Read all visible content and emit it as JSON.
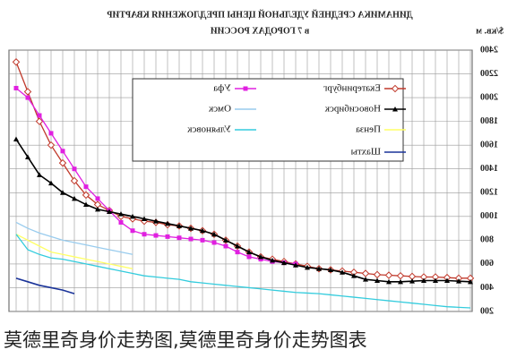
{
  "chart_data": {
    "type": "line",
    "title": "ДИНАМИКА СРЕДНЕЙ УДЕЛЬНОЙ ЦЕНЫ ПРЕДЛОЖЕНИЯ КВАРТИР",
    "subtitle": "в 7 ГОРОДАХ РОССИИ",
    "y_label": "$/кв. м",
    "categories": [
      null,
      null,
      null,
      null,
      null,
      null,
      null,
      null,
      null,
      null,
      null,
      null,
      null,
      null,
      null,
      null,
      null,
      null,
      null,
      null,
      null,
      null,
      null,
      null,
      null,
      null,
      null,
      null,
      null,
      null,
      null,
      null,
      null,
      null,
      null,
      null,
      null,
      null,
      null,
      null
    ],
    "ylim": [
      200,
      2400
    ],
    "yticks": [
      200,
      400,
      600,
      800,
      1000,
      1200,
      1400,
      1600,
      1800,
      2000,
      2200,
      2400
    ],
    "grid": true,
    "series": [
      {
        "name": "Екатеринбург",
        "color": "#c0392b",
        "values": [
          2300,
          2050,
          1800,
          1600,
          1450,
          1300,
          1180,
          1100,
          1050,
          1000,
          980,
          960,
          950,
          930,
          920,
          900,
          880,
          850,
          800,
          750,
          700,
          660,
          640,
          620,
          600,
          580,
          560,
          550,
          540,
          530,
          520,
          510,
          505,
          500,
          495,
          490,
          490,
          485,
          480,
          480
        ]
      },
      {
        "name": "Уфа",
        "color": "#e020e0",
        "values": [
          2080,
          2000,
          1850,
          1700,
          1550,
          1400,
          1250,
          1150,
          1050,
          950,
          880,
          850,
          840,
          830,
          820,
          810,
          800,
          780,
          750,
          700,
          660,
          640,
          620,
          610,
          600,
          null,
          null,
          null,
          null,
          null,
          null,
          null,
          null,
          null,
          null,
          null,
          null,
          null,
          null,
          null
        ]
      },
      {
        "name": "Новосибирск",
        "color": "#000000",
        "values": [
          1650,
          1500,
          1350,
          1280,
          1200,
          1150,
          1100,
          1060,
          1040,
          1020,
          1000,
          980,
          960,
          940,
          920,
          900,
          880,
          850,
          800,
          750,
          700,
          660,
          630,
          610,
          590,
          570,
          560,
          550,
          530,
          500,
          470,
          460,
          450,
          450,
          455,
          460,
          460,
          460,
          455,
          450
        ]
      },
      {
        "name": "Омск",
        "color": "#99ccee",
        "values": [
          950,
          900,
          860,
          830,
          800,
          780,
          760,
          740,
          720,
          700,
          680,
          null,
          null,
          null,
          null,
          null,
          null,
          null,
          null,
          null,
          null,
          null,
          null,
          null,
          null,
          null,
          null,
          null,
          null,
          null,
          null,
          null,
          null,
          null,
          null,
          null,
          null,
          null,
          null,
          null
        ]
      },
      {
        "name": "Пенза",
        "color": "#ffff66",
        "values": [
          850,
          800,
          750,
          700,
          680,
          660,
          640,
          620,
          600,
          580,
          560,
          null,
          null,
          null,
          null,
          null,
          null,
          null,
          null,
          null,
          null,
          null,
          null,
          null,
          null,
          null,
          null,
          null,
          null,
          null,
          null,
          null,
          null,
          null,
          null,
          null,
          null,
          null,
          null,
          null
        ]
      },
      {
        "name": "Ульяновск",
        "color": "#33ccdd",
        "values": [
          850,
          720,
          680,
          650,
          640,
          620,
          600,
          580,
          560,
          540,
          520,
          500,
          490,
          480,
          470,
          450,
          440,
          430,
          420,
          410,
          400,
          390,
          380,
          370,
          360,
          355,
          350,
          340,
          330,
          320,
          310,
          300,
          290,
          280,
          270,
          260,
          250,
          240,
          235,
          230
        ]
      },
      {
        "name": "Шахты",
        "color": "#1a3399",
        "values": [
          480,
          450,
          420,
          400,
          380,
          350,
          null,
          null,
          null,
          null,
          null,
          null,
          null,
          null,
          null,
          null,
          null,
          null,
          null,
          null,
          null,
          null,
          null,
          null,
          null,
          null,
          null,
          null,
          null,
          null,
          null,
          null,
          null,
          null,
          null,
          null,
          null,
          null,
          null,
          null
        ]
      }
    ]
  },
  "caption": "莫德里奇身价走势图,莫德里奇身价走势图表"
}
